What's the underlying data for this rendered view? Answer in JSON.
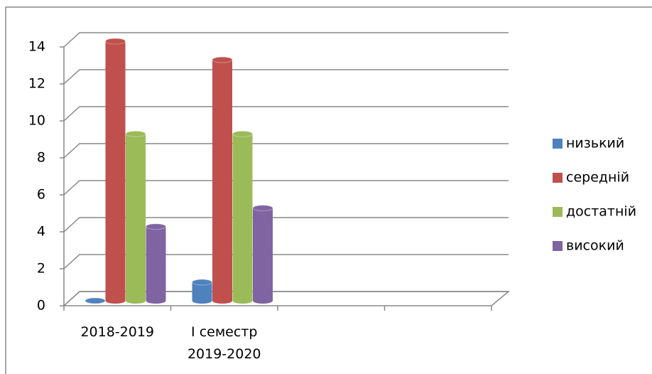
{
  "chart_data": {
    "type": "bar3d",
    "categories": [
      "2018-2019",
      "I семестр\n2019-2020",
      null,
      null
    ],
    "series": [
      {
        "name": "низький",
        "color": "#4f81bd",
        "values": [
          0,
          1,
          null,
          null
        ]
      },
      {
        "name": "середній",
        "color": "#c0504d",
        "values": [
          14,
          13,
          null,
          null
        ]
      },
      {
        "name": "достатній",
        "color": "#9bbb59",
        "values": [
          9,
          9,
          null,
          null
        ]
      },
      {
        "name": "високий",
        "color": "#8064a2",
        "values": [
          4,
          5,
          null,
          null
        ]
      }
    ],
    "ylim": [
      0,
      14
    ],
    "yticks": [
      0,
      2,
      4,
      6,
      8,
      10,
      12,
      14
    ],
    "grid": true,
    "legend": "right"
  }
}
